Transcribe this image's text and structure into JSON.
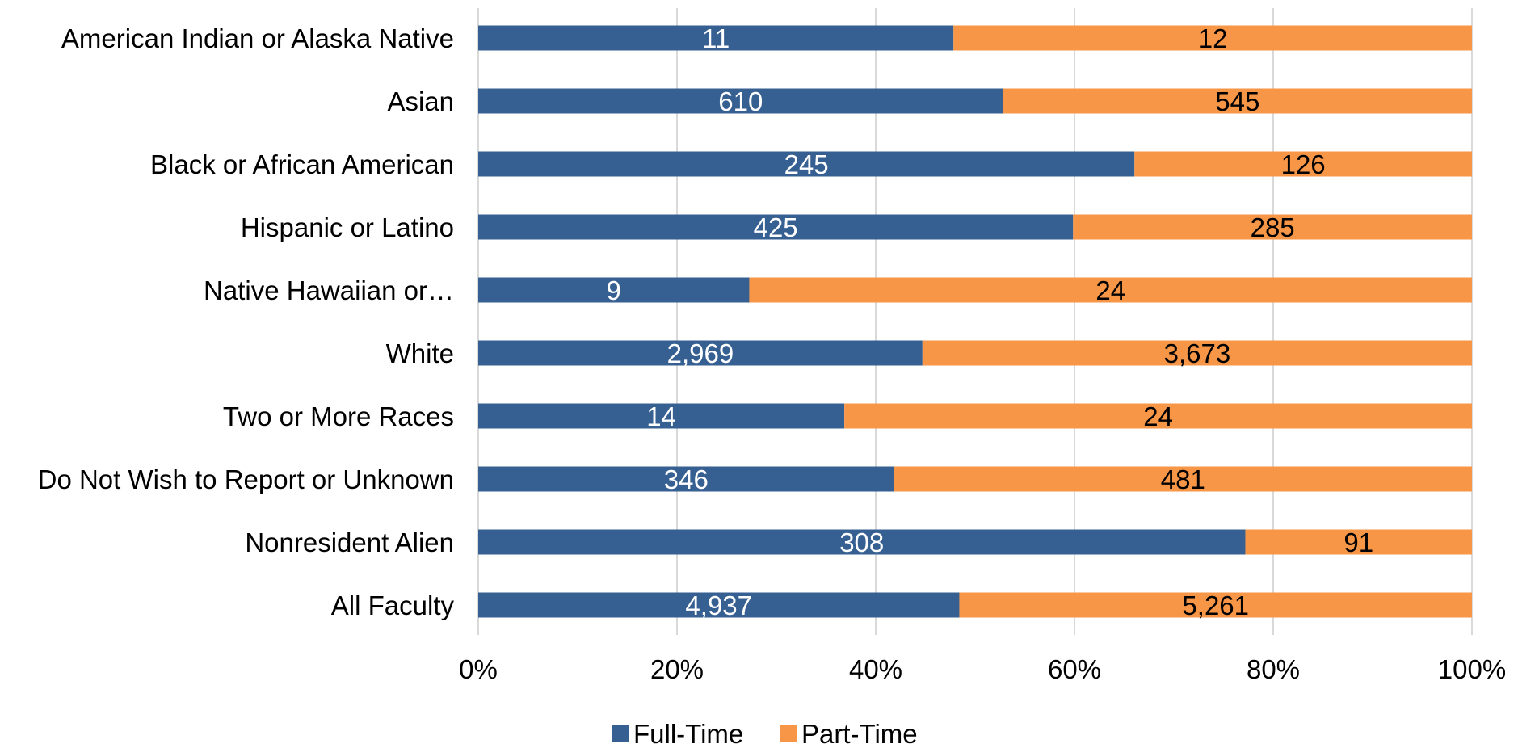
{
  "chart_data": {
    "type": "bar",
    "orientation": "horizontal",
    "stacking": "percent",
    "title": "",
    "xlabel": "",
    "ylabel": "",
    "xlim": [
      0,
      100
    ],
    "x_ticks": [
      "0%",
      "20%",
      "40%",
      "60%",
      "80%",
      "100%"
    ],
    "grid": true,
    "legend_position": "bottom",
    "categories": [
      "American Indian or Alaska Native",
      "Asian",
      "Black or African American",
      "Hispanic or Latino",
      "Native Hawaiian or…",
      "White",
      "Two or More Races",
      "Do Not Wish to Report or Unknown",
      "Nonresident Alien",
      "All Faculty"
    ],
    "series": [
      {
        "name": "Full-Time",
        "color": "#376092",
        "values": [
          11,
          610,
          245,
          425,
          9,
          2969,
          14,
          346,
          308,
          4937
        ],
        "labels": [
          "11",
          "610",
          "245",
          "425",
          "9",
          "2,969",
          "14",
          "346",
          "308",
          "4,937"
        ]
      },
      {
        "name": "Part-Time",
        "color": "#F79646",
        "values": [
          12,
          545,
          126,
          285,
          24,
          3673,
          24,
          481,
          91,
          5261
        ],
        "labels": [
          "12",
          "545",
          "126",
          "285",
          "24",
          "3,673",
          "24",
          "481",
          "91",
          "5,261"
        ]
      }
    ]
  }
}
